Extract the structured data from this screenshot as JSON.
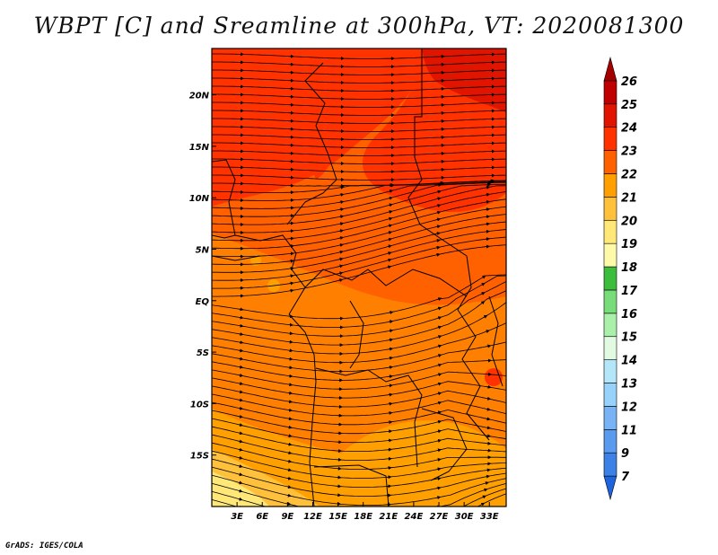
{
  "title": "WBPT [C] and Sreamline at 300hPa, VT: 2020081300",
  "credit": "GrADS: IGES/COLA",
  "chart_data": {
    "type": "heatmap",
    "variable": "Wet-bulb potential temperature",
    "units": "C",
    "level": "300hPa",
    "valid_time": "2020081300",
    "lon_range": [
      0,
      35
    ],
    "lat_range": [
      -20,
      24.5
    ],
    "x_ticks": [
      "3E",
      "6E",
      "9E",
      "12E",
      "15E",
      "18E",
      "21E",
      "24E",
      "27E",
      "30E",
      "33E"
    ],
    "x_tick_values": [
      3,
      6,
      9,
      12,
      15,
      18,
      21,
      24,
      27,
      30,
      33
    ],
    "y_ticks": [
      "20N",
      "15N",
      "10N",
      "5N",
      "EQ",
      "5S",
      "10S",
      "15S"
    ],
    "y_tick_values": [
      20,
      15,
      10,
      5,
      0,
      -5,
      -10,
      -15
    ],
    "colorbar": {
      "levels": [
        "7",
        "9",
        "11",
        "12",
        "13",
        "14",
        "15",
        "16",
        "17",
        "18",
        "19",
        "20",
        "21",
        "22",
        "23",
        "24",
        "25",
        "26"
      ],
      "colors": [
        "#1e64dc",
        "#3c82e6",
        "#5a9bf0",
        "#78b4f5",
        "#96d2fa",
        "#b4e6fa",
        "#e1fae1",
        "#aaf0aa",
        "#78dc78",
        "#3cbe3c",
        "#fffaaa",
        "#ffe878",
        "#ffc03c",
        "#ffa000",
        "#ff6000",
        "#ff3200",
        "#e11400",
        "#c00000",
        "#a50000"
      ]
    },
    "fields": {
      "dominant_range": "22-24 C over most of the domain",
      "warmest": "24-25 C in the northeast corner",
      "coolest": "19-21 C in the southwest corner"
    },
    "overlays": [
      "streamlines",
      "country boundaries"
    ]
  }
}
